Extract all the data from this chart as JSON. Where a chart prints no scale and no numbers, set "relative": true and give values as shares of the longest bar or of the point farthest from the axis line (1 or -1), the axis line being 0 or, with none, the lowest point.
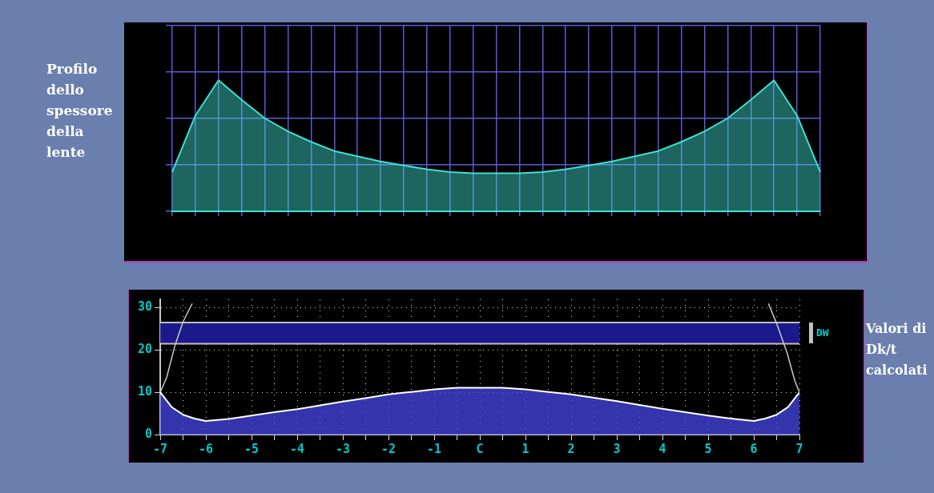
{
  "chart_data": [
    {
      "type": "area",
      "ylabel": "Profilo dello spessore della lente",
      "relative": true,
      "grid": true,
      "legend": false,
      "categories": [
        null,
        null,
        null,
        null,
        null,
        null,
        null,
        null,
        null,
        null,
        null,
        null,
        null,
        null,
        null,
        null,
        null,
        null,
        null,
        null,
        null,
        null,
        null,
        null,
        null,
        null,
        null,
        null,
        null
      ],
      "series": [
        {
          "color": "#40e0d0",
          "values": [
            0.3,
            0.73,
            1,
            0.85,
            0.71,
            0.61,
            0.53,
            0.46,
            0.42,
            0.38,
            0.35,
            0.32,
            0.3,
            0.29,
            0.29,
            0.29,
            0.3,
            0.32,
            0.35,
            0.38,
            0.42,
            0.46,
            0.53,
            0.61,
            0.71,
            0.85,
            1,
            0.73,
            0.3
          ]
        }
      ]
    },
    {
      "type": "area",
      "y2label": "Valori di Dk/t calcolati",
      "grid": true,
      "legend": false,
      "line_style": "solid",
      "xlim": [
        -7,
        7
      ],
      "ylim": [
        0,
        32
      ],
      "xticks": [
        -7,
        {
          "value": -6.5,
          "label": null
        },
        -6,
        {
          "value": -5.5,
          "label": null
        },
        -5,
        {
          "value": -4.5,
          "label": null
        },
        -4,
        {
          "value": -3.5,
          "label": null
        },
        -3,
        {
          "value": -2.5,
          "label": null
        },
        -2,
        {
          "value": -1.5,
          "label": null
        },
        -1,
        {
          "value": -0.5,
          "label": null
        },
        {
          "value": 0,
          "label": "C"
        },
        {
          "value": 0.5,
          "label": null
        },
        1,
        {
          "value": 1.5,
          "label": null
        },
        2,
        {
          "value": 2.5,
          "label": null
        },
        3,
        {
          "value": 3.5,
          "label": null
        },
        4,
        {
          "value": 4.5,
          "label": null
        },
        5,
        {
          "value": 5.5,
          "label": null
        },
        6,
        {
          "value": 6.5,
          "label": null
        },
        7
      ],
      "yticks": [
        0,
        10,
        20,
        30
      ],
      "bands": [
        {
          "axis": "y",
          "from": 21.5,
          "to": 26.5,
          "label": "DW",
          "color": "#1a1a8c"
        }
      ],
      "ref_lines": [
        {
          "axis": "y",
          "value": 21.5,
          "color": "#c0c0c0"
        },
        {
          "axis": "y",
          "value": 26.5,
          "color": "#c0c0c0"
        }
      ],
      "series": [
        {
          "color": "#ffffff",
          "x": [
            -7,
            -6.75,
            -6.5,
            -6.25,
            -6,
            -5.5,
            -5,
            -4.5,
            -4,
            -3.5,
            -3,
            -2.5,
            -2,
            -1.5,
            -1,
            -0.5,
            0,
            0.5,
            1,
            1.5,
            2,
            2.5,
            3,
            3.5,
            4,
            4.5,
            5,
            5.5,
            6,
            6.25,
            6.5,
            6.75,
            7
          ],
          "values": [
            10,
            6.5,
            4.7,
            3.8,
            3.2,
            3.7,
            4.5,
            5.3,
            6.0,
            6.9,
            7.8,
            8.6,
            9.5,
            10.1,
            10.7,
            11.1,
            11.1,
            11.1,
            10.7,
            10.1,
            9.5,
            8.7,
            7.9,
            7.0,
            6.1,
            5.3,
            4.5,
            3.8,
            3.2,
            3.8,
            4.7,
            6.5,
            10
          ]
        },
        {
          "type": "line",
          "color": "#c8c8c8",
          "x": [
            -7,
            -6.86,
            -6.68,
            -6.5,
            -6.3,
            0,
            6.32,
            6.5,
            6.73,
            6.9,
            7
          ],
          "values": [
            10,
            13.5,
            21,
            26.7,
            31,
            null,
            31,
            26.3,
            19.3,
            12.7,
            10
          ]
        }
      ]
    }
  ]
}
